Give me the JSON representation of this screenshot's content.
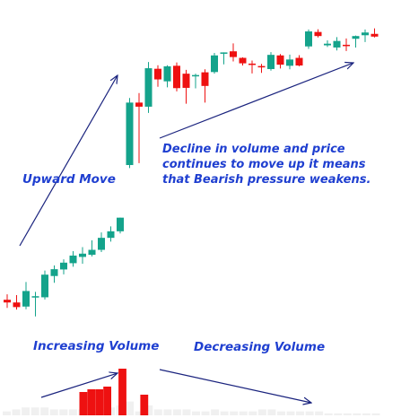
{
  "chart_data": {
    "type": "candlestick",
    "title": "",
    "xlabel": "",
    "ylabel": "",
    "grid": false,
    "legend": "none",
    "colors": {
      "up": "#14a38b",
      "down": "#ee1111",
      "volume_high": "#ee1111",
      "volume_low": "#f0f0f0",
      "annotation": "#1f3fd0",
      "arrow": "#1a237e"
    },
    "ylim": [
      0,
      100
    ],
    "candles": [
      {
        "o": 8.5,
        "h": 10.5,
        "l": 5.5,
        "c": 7.5
      },
      {
        "o": 7.5,
        "h": 10.2,
        "l": 4.9,
        "c": 5.8
      },
      {
        "o": 6.0,
        "h": 15.0,
        "l": 5.0,
        "c": 11.7
      },
      {
        "o": 9.3,
        "h": 11.4,
        "l": 2.4,
        "c": 9.8
      },
      {
        "o": 9.4,
        "h": 19.2,
        "l": 8.6,
        "c": 17.7
      },
      {
        "o": 17.2,
        "h": 21.1,
        "l": 14.7,
        "c": 19.7
      },
      {
        "o": 19.6,
        "h": 23.3,
        "l": 17.8,
        "c": 22.1
      },
      {
        "o": 21.9,
        "h": 26.3,
        "l": 20.6,
        "c": 24.7
      },
      {
        "o": 24.2,
        "h": 27.8,
        "l": 21.7,
        "c": 25.4
      },
      {
        "o": 25.0,
        "h": 30.3,
        "l": 24.4,
        "c": 26.8
      },
      {
        "o": 26.8,
        "h": 33.2,
        "l": 26.0,
        "c": 31.2
      },
      {
        "o": 31.2,
        "h": 35.4,
        "l": 29.8,
        "c": 33.6
      },
      {
        "o": 33.6,
        "h": 38.6,
        "l": 32.8,
        "c": 38.6
      },
      {
        "o": 57.9,
        "h": 82.5,
        "l": 56.8,
        "c": 80.8
      },
      {
        "o": 80.8,
        "h": 84.3,
        "l": 58.6,
        "c": 79.3
      },
      {
        "o": 79.3,
        "h": 95.7,
        "l": 77.0,
        "c": 93.4
      },
      {
        "o": 93.2,
        "h": 94.5,
        "l": 86.6,
        "c": 89.3
      },
      {
        "o": 88.6,
        "h": 94.5,
        "l": 86.4,
        "c": 94.1
      },
      {
        "o": 94.3,
        "h": 95.5,
        "l": 84.9,
        "c": 86.1
      },
      {
        "o": 91.4,
        "h": 92.8,
        "l": 80.4,
        "c": 86.2
      },
      {
        "o": 90.6,
        "h": 91.4,
        "l": 86.0,
        "c": 90.9
      },
      {
        "o": 91.9,
        "h": 93.0,
        "l": 80.8,
        "c": 86.9
      },
      {
        "o": 92.0,
        "h": 99.0,
        "l": 91.4,
        "c": 98.1
      },
      {
        "o": 98.7,
        "h": 99.2,
        "l": 94.8,
        "c": 99.2
      },
      {
        "o": 99.6,
        "h": 102.5,
        "l": 95.9,
        "c": 97.5
      },
      {
        "o": 97.2,
        "h": 97.4,
        "l": 94.4,
        "c": 95.2
      },
      {
        "o": 95.1,
        "h": 96.2,
        "l": 91.5,
        "c": 94.6
      },
      {
        "o": 94.2,
        "h": 95.0,
        "l": 91.7,
        "c": 93.8
      },
      {
        "o": 93.1,
        "h": 99.3,
        "l": 92.5,
        "c": 98.3
      },
      {
        "o": 98.1,
        "h": 98.6,
        "l": 93.3,
        "c": 94.7
      },
      {
        "o": 94.3,
        "h": 98.4,
        "l": 93.0,
        "c": 96.6
      },
      {
        "o": 97.2,
        "h": 98.2,
        "l": 94.1,
        "c": 94.4
      },
      {
        "o": 101.4,
        "h": 107.6,
        "l": 100.5,
        "c": 106.9
      },
      {
        "o": 106.7,
        "h": 107.7,
        "l": 104.7,
        "c": 105.2
      },
      {
        "o": 101.8,
        "h": 103.6,
        "l": 101.2,
        "c": 102.4
      },
      {
        "o": 101.0,
        "h": 104.8,
        "l": 99.9,
        "c": 103.4
      },
      {
        "o": 102.0,
        "h": 104.3,
        "l": 99.7,
        "c": 101.5
      },
      {
        "o": 104.2,
        "h": 105.4,
        "l": 101.0,
        "c": 105.2
      },
      {
        "o": 105.5,
        "h": 107.6,
        "l": 103.0,
        "c": 106.5
      },
      {
        "o": 106.0,
        "h": 108.0,
        "l": 104.7,
        "c": 105.0
      }
    ],
    "volume": [
      2,
      3,
      4,
      4,
      4,
      3,
      3,
      3,
      3,
      2,
      3,
      4,
      5,
      7,
      2,
      5,
      3,
      3,
      3,
      3,
      2,
      2,
      3,
      2,
      2,
      2,
      2,
      3,
      3,
      2,
      2,
      2,
      2,
      2,
      1,
      1,
      1,
      1,
      1,
      1
    ],
    "volume_highlight": [
      null,
      null,
      null,
      null,
      null,
      null,
      null,
      null,
      null,
      null,
      null,
      26,
      29,
      29,
      32,
      52,
      null,
      23
    ],
    "annotations": {
      "upward_move": "Upward Move",
      "decline_line1": "Decline in volume and price",
      "decline_line2": "continues to move up it means",
      "decline_line3": "that Bearish pressure weakens.",
      "increasing_volume": "Increasing Volume",
      "decreasing_volume": "Decreasing Volume"
    }
  }
}
